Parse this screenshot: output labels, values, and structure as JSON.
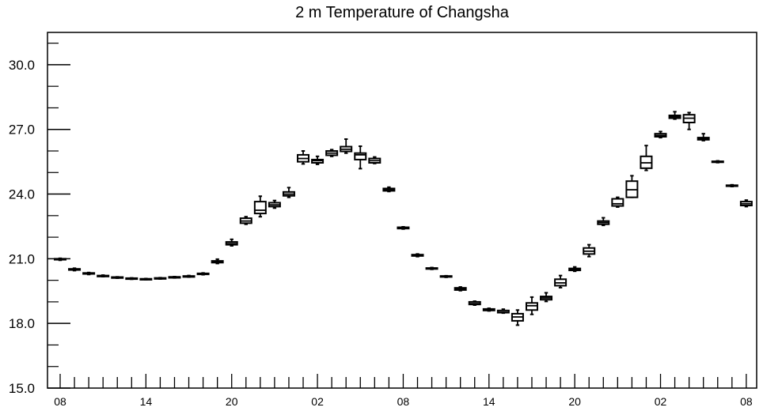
{
  "chart_data": {
    "type": "boxplot",
    "title": "2 m Temperature of Changsha",
    "xlabel": "",
    "ylabel": "",
    "ylim": [
      15.0,
      31.5
    ],
    "yticks": [
      "15.0",
      "18.0",
      "21.0",
      "24.0",
      "27.0",
      "30.0"
    ],
    "xtick_labels": [
      "08",
      "14",
      "20",
      "02",
      "08",
      "14",
      "20",
      "02",
      "08"
    ],
    "grid": false,
    "boxes": [
      {
        "x": 0,
        "min": 20.93,
        "q1": 20.96,
        "median": 20.98,
        "q3": 21.0,
        "max": 21.02
      },
      {
        "x": 1,
        "min": 20.45,
        "q1": 20.48,
        "median": 20.5,
        "q3": 20.53,
        "max": 20.56
      },
      {
        "x": 2,
        "min": 20.27,
        "q1": 20.3,
        "median": 20.32,
        "q3": 20.34,
        "max": 20.36
      },
      {
        "x": 3,
        "min": 20.17,
        "q1": 20.19,
        "median": 20.2,
        "q3": 20.22,
        "max": 20.24
      },
      {
        "x": 4,
        "min": 20.1,
        "q1": 20.12,
        "median": 20.13,
        "q3": 20.15,
        "max": 20.16
      },
      {
        "x": 5,
        "min": 20.05,
        "q1": 20.07,
        "median": 20.08,
        "q3": 20.1,
        "max": 20.11
      },
      {
        "x": 6,
        "min": 20.03,
        "q1": 20.04,
        "median": 20.05,
        "q3": 20.07,
        "max": 20.08
      },
      {
        "x": 7,
        "min": 20.06,
        "q1": 20.08,
        "median": 20.09,
        "q3": 20.11,
        "max": 20.12
      },
      {
        "x": 8,
        "min": 20.11,
        "q1": 20.13,
        "median": 20.14,
        "q3": 20.16,
        "max": 20.17
      },
      {
        "x": 9,
        "min": 20.15,
        "q1": 20.17,
        "median": 20.18,
        "q3": 20.2,
        "max": 20.22
      },
      {
        "x": 10,
        "min": 20.26,
        "q1": 20.28,
        "median": 20.3,
        "q3": 20.32,
        "max": 20.34
      },
      {
        "x": 11,
        "min": 20.78,
        "q1": 20.82,
        "median": 20.86,
        "q3": 20.9,
        "max": 20.98
      },
      {
        "x": 12,
        "min": 21.6,
        "q1": 21.65,
        "median": 21.7,
        "q3": 21.78,
        "max": 21.9
      },
      {
        "x": 13,
        "min": 22.6,
        "q1": 22.65,
        "median": 22.75,
        "q3": 22.88,
        "max": 22.95
      },
      {
        "x": 14,
        "min": 22.95,
        "q1": 23.1,
        "median": 23.25,
        "q3": 23.65,
        "max": 23.9
      },
      {
        "x": 15,
        "min": 23.35,
        "q1": 23.42,
        "median": 23.5,
        "q3": 23.6,
        "max": 23.7
      },
      {
        "x": 16,
        "min": 23.85,
        "q1": 23.92,
        "median": 24.0,
        "q3": 24.1,
        "max": 24.3
      },
      {
        "x": 17,
        "min": 25.4,
        "q1": 25.5,
        "median": 25.65,
        "q3": 25.82,
        "max": 26.0
      },
      {
        "x": 18,
        "min": 25.38,
        "q1": 25.45,
        "median": 25.55,
        "q3": 25.6,
        "max": 25.75
      },
      {
        "x": 19,
        "min": 25.75,
        "q1": 25.8,
        "median": 25.9,
        "q3": 26.0,
        "max": 26.06
      },
      {
        "x": 20,
        "min": 25.9,
        "q1": 25.98,
        "median": 26.08,
        "q3": 26.2,
        "max": 26.55
      },
      {
        "x": 21,
        "min": 25.18,
        "q1": 25.6,
        "median": 25.82,
        "q3": 25.9,
        "max": 26.22
      },
      {
        "x": 22,
        "min": 25.42,
        "q1": 25.45,
        "median": 25.55,
        "q3": 25.65,
        "max": 25.72
      },
      {
        "x": 23,
        "min": 24.12,
        "q1": 24.15,
        "median": 24.2,
        "q3": 24.26,
        "max": 24.32
      },
      {
        "x": 24,
        "min": 22.38,
        "q1": 22.4,
        "median": 22.43,
        "q3": 22.46,
        "max": 22.48
      },
      {
        "x": 25,
        "min": 21.1,
        "q1": 21.13,
        "median": 21.16,
        "q3": 21.19,
        "max": 21.22
      },
      {
        "x": 26,
        "min": 20.51,
        "q1": 20.53,
        "median": 20.55,
        "q3": 20.57,
        "max": 20.59
      },
      {
        "x": 27,
        "min": 20.14,
        "q1": 20.16,
        "median": 20.18,
        "q3": 20.2,
        "max": 20.21
      },
      {
        "x": 28,
        "min": 19.52,
        "q1": 19.55,
        "median": 19.6,
        "q3": 19.65,
        "max": 19.69
      },
      {
        "x": 29,
        "min": 18.85,
        "q1": 18.88,
        "median": 18.92,
        "q3": 19.0,
        "max": 19.03
      },
      {
        "x": 30,
        "min": 18.58,
        "q1": 18.6,
        "median": 18.63,
        "q3": 18.67,
        "max": 18.7
      },
      {
        "x": 31,
        "min": 18.48,
        "q1": 18.5,
        "median": 18.52,
        "q3": 18.6,
        "max": 18.66
      },
      {
        "x": 32,
        "min": 17.92,
        "q1": 18.12,
        "median": 18.3,
        "q3": 18.45,
        "max": 18.62
      },
      {
        "x": 33,
        "min": 18.42,
        "q1": 18.62,
        "median": 18.82,
        "q3": 18.95,
        "max": 19.22
      },
      {
        "x": 34,
        "min": 19.02,
        "q1": 19.1,
        "median": 19.18,
        "q3": 19.25,
        "max": 19.42
      },
      {
        "x": 35,
        "min": 19.66,
        "q1": 19.75,
        "median": 19.88,
        "q3": 20.05,
        "max": 20.22
      },
      {
        "x": 36,
        "min": 20.42,
        "q1": 20.46,
        "median": 20.5,
        "q3": 20.55,
        "max": 20.62
      },
      {
        "x": 37,
        "min": 21.1,
        "q1": 21.22,
        "median": 21.35,
        "q3": 21.5,
        "max": 21.65
      },
      {
        "x": 38,
        "min": 22.55,
        "q1": 22.6,
        "median": 22.68,
        "q3": 22.75,
        "max": 22.9
      },
      {
        "x": 39,
        "min": 23.4,
        "q1": 23.45,
        "median": 23.55,
        "q3": 23.78,
        "max": 23.85
      },
      {
        "x": 40,
        "min": 23.85,
        "q1": 23.85,
        "median": 24.2,
        "q3": 24.6,
        "max": 24.85
      },
      {
        "x": 41,
        "min": 25.1,
        "q1": 25.2,
        "median": 25.45,
        "q3": 25.75,
        "max": 26.25
      },
      {
        "x": 42,
        "min": 26.62,
        "q1": 26.66,
        "median": 26.72,
        "q3": 26.8,
        "max": 26.9
      },
      {
        "x": 43,
        "min": 27.48,
        "q1": 27.52,
        "median": 27.58,
        "q3": 27.65,
        "max": 27.82
      },
      {
        "x": 44,
        "min": 27.0,
        "q1": 27.32,
        "median": 27.52,
        "q3": 27.68,
        "max": 27.78
      },
      {
        "x": 45,
        "min": 26.48,
        "q1": 26.52,
        "median": 26.58,
        "q3": 26.62,
        "max": 26.8
      },
      {
        "x": 46,
        "min": 25.46,
        "q1": 25.48,
        "median": 25.5,
        "q3": 25.52,
        "max": 25.54
      },
      {
        "x": 47,
        "min": 24.35,
        "q1": 24.37,
        "median": 24.39,
        "q3": 24.41,
        "max": 24.43
      },
      {
        "x": 48,
        "min": 23.42,
        "q1": 23.47,
        "median": 23.55,
        "q3": 23.65,
        "max": 23.72
      }
    ]
  }
}
